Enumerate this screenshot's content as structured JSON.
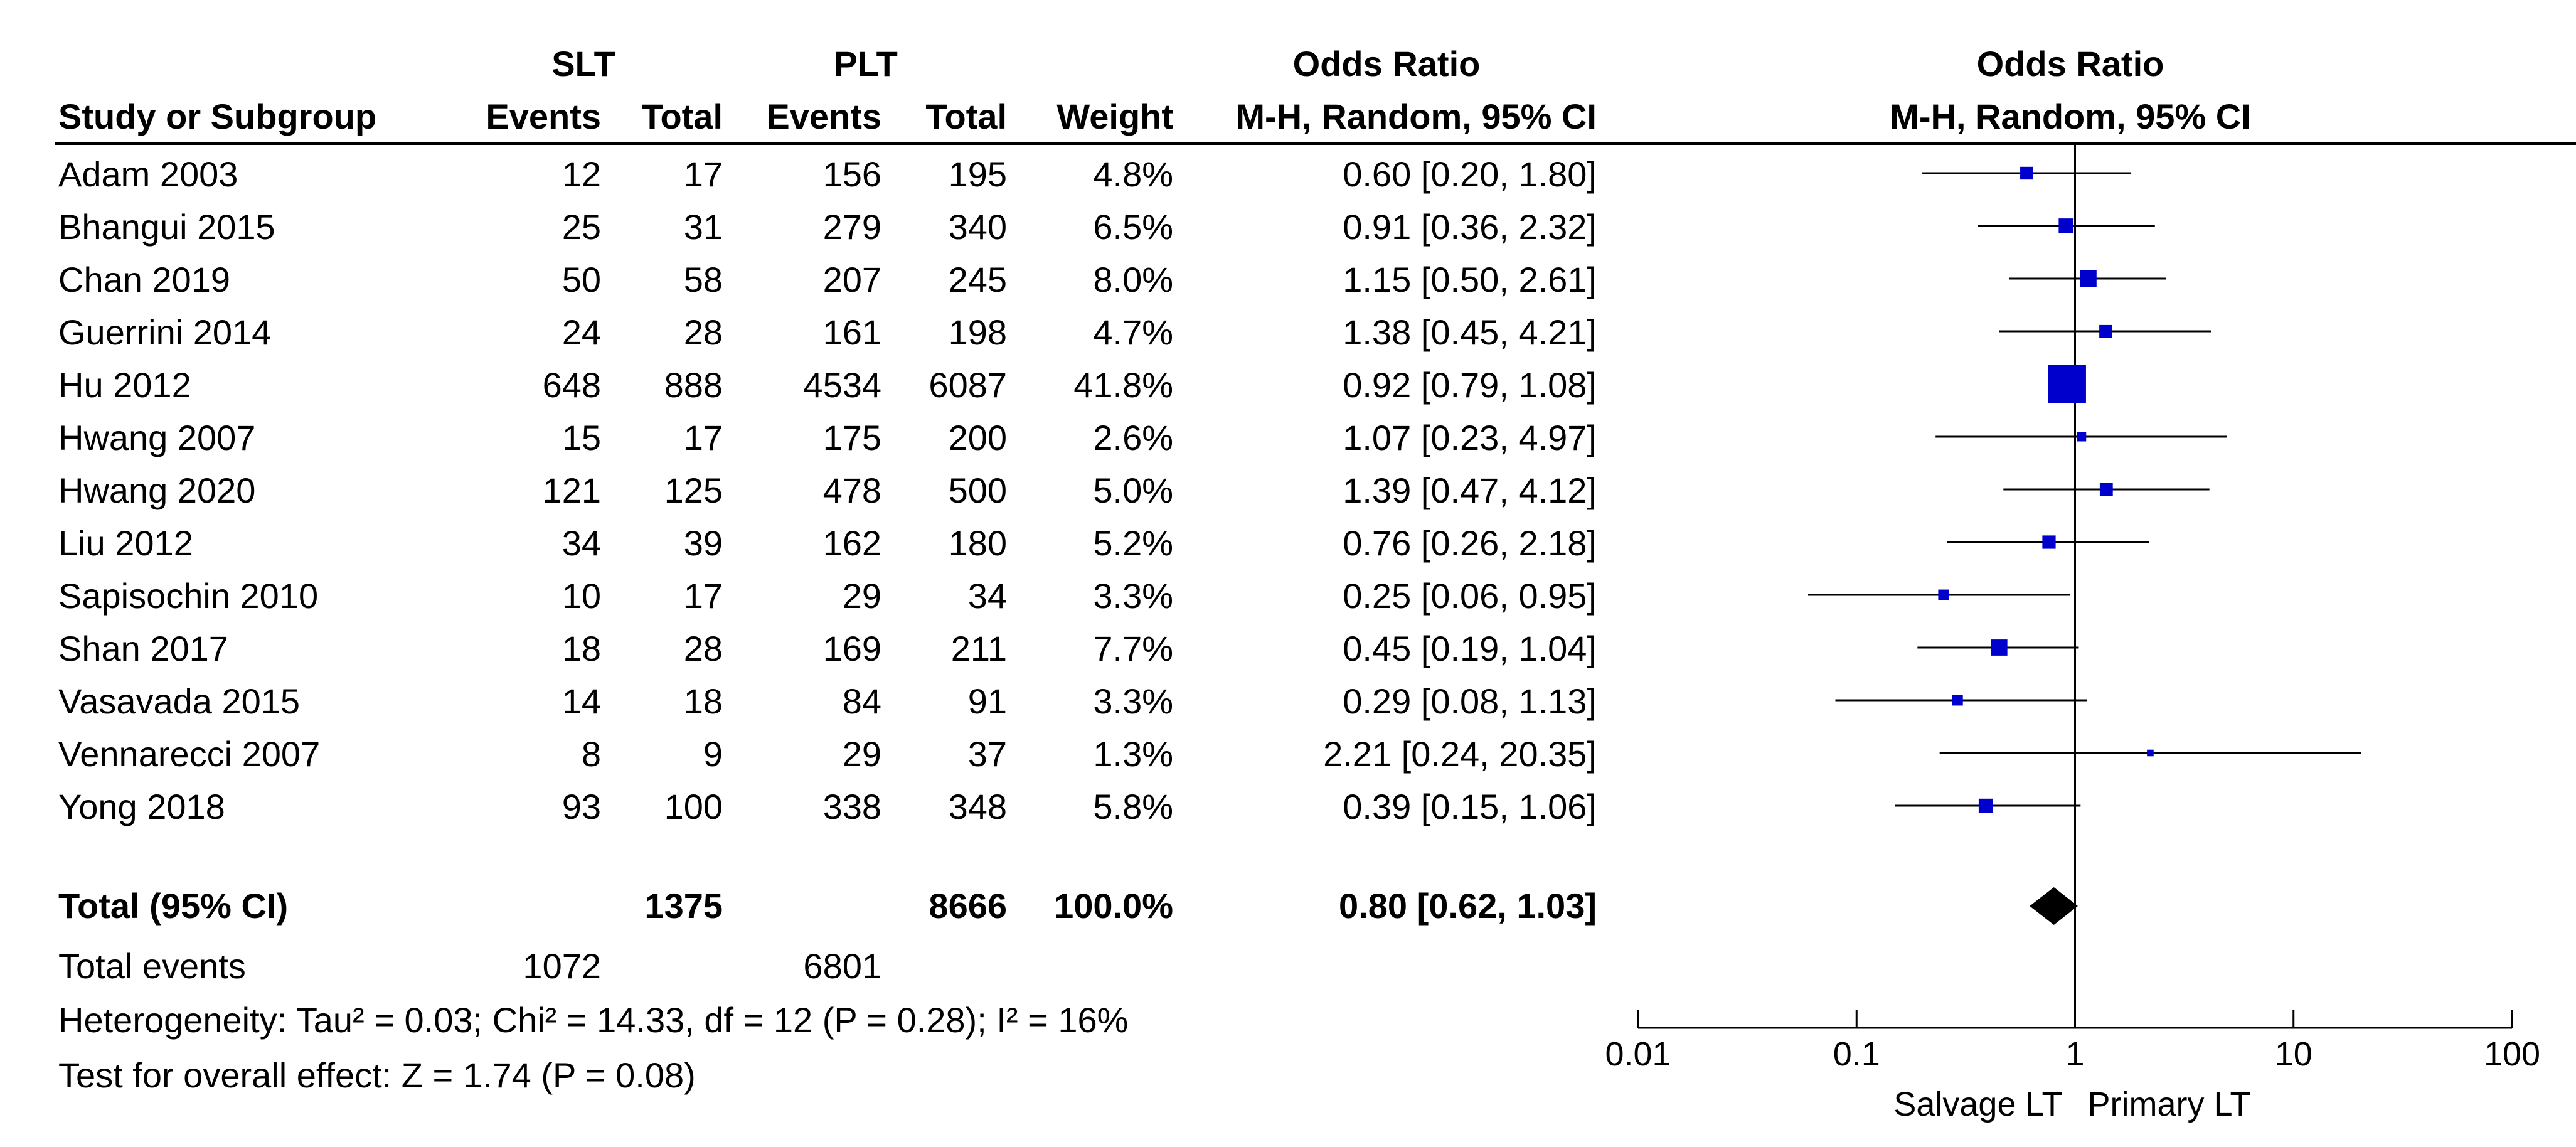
{
  "header": {
    "group1": "SLT",
    "group2": "PLT",
    "or_title": "Odds Ratio",
    "plot_title": "Odds Ratio",
    "col_study": "Study or Subgroup",
    "col_events1": "Events",
    "col_total1": "Total",
    "col_events2": "Events",
    "col_total2": "Total",
    "col_weight": "Weight",
    "col_method": "M-H, Random, 95% CI",
    "plot_method": "M-H, Random, 95% CI"
  },
  "total_row": {
    "label": "Total (95% CI)",
    "total1": "1375",
    "total2": "8666",
    "weight": "100.0%",
    "ci_text": "0.80 [0.62, 1.03]"
  },
  "footer": {
    "events_label": "Total events",
    "events1": "1072",
    "events2": "6801",
    "heterogeneity": "Heterogeneity: Tau² = 0.03; Chi² = 14.33, df = 12 (P = 0.28); I² = 16%",
    "overall": "Test for overall effect: Z = 1.74 (P = 0.08)"
  },
  "axis": {
    "left_label": "Salvage LT",
    "right_label": "Primary LT"
  },
  "colors": {
    "marker": "#0000cc",
    "line": "#000000",
    "diamond": "#000000"
  },
  "chart_data": {
    "type": "forest",
    "title": "Odds Ratio",
    "xscale": "log",
    "xlim": [
      0.01,
      100
    ],
    "ticks": [
      {
        "value": 0.01,
        "label": "0.01"
      },
      {
        "value": 0.1,
        "label": "0.1"
      },
      {
        "value": 1,
        "label": "1"
      },
      {
        "value": 10,
        "label": "10"
      },
      {
        "value": 100,
        "label": "100"
      }
    ],
    "studies": [
      {
        "name": "Adam 2003",
        "e1": "12",
        "n1": "17",
        "e2": "156",
        "n2": "195",
        "weight": "4.8%",
        "w": 4.8,
        "or": 0.6,
        "lo": 0.2,
        "hi": 1.8,
        "ci_text": "0.60 [0.20, 1.80]"
      },
      {
        "name": "Bhangui 2015",
        "e1": "25",
        "n1": "31",
        "e2": "279",
        "n2": "340",
        "weight": "6.5%",
        "w": 6.5,
        "or": 0.91,
        "lo": 0.36,
        "hi": 2.32,
        "ci_text": "0.91 [0.36, 2.32]"
      },
      {
        "name": "Chan 2019",
        "e1": "50",
        "n1": "58",
        "e2": "207",
        "n2": "245",
        "weight": "8.0%",
        "w": 8.0,
        "or": 1.15,
        "lo": 0.5,
        "hi": 2.61,
        "ci_text": "1.15 [0.50, 2.61]"
      },
      {
        "name": "Guerrini 2014",
        "e1": "24",
        "n1": "28",
        "e2": "161",
        "n2": "198",
        "weight": "4.7%",
        "w": 4.7,
        "or": 1.38,
        "lo": 0.45,
        "hi": 4.21,
        "ci_text": "1.38 [0.45, 4.21]"
      },
      {
        "name": "Hu 2012",
        "e1": "648",
        "n1": "888",
        "e2": "4534",
        "n2": "6087",
        "weight": "41.8%",
        "w": 41.8,
        "or": 0.92,
        "lo": 0.79,
        "hi": 1.08,
        "ci_text": "0.92 [0.79, 1.08]"
      },
      {
        "name": "Hwang 2007",
        "e1": "15",
        "n1": "17",
        "e2": "175",
        "n2": "200",
        "weight": "2.6%",
        "w": 2.6,
        "or": 1.07,
        "lo": 0.23,
        "hi": 4.97,
        "ci_text": "1.07 [0.23, 4.97]"
      },
      {
        "name": "Hwang 2020",
        "e1": "121",
        "n1": "125",
        "e2": "478",
        "n2": "500",
        "weight": "5.0%",
        "w": 5.0,
        "or": 1.39,
        "lo": 0.47,
        "hi": 4.12,
        "ci_text": "1.39 [0.47, 4.12]"
      },
      {
        "name": "Liu 2012",
        "e1": "34",
        "n1": "39",
        "e2": "162",
        "n2": "180",
        "weight": "5.2%",
        "w": 5.2,
        "or": 0.76,
        "lo": 0.26,
        "hi": 2.18,
        "ci_text": "0.76 [0.26, 2.18]"
      },
      {
        "name": "Sapisochin 2010",
        "e1": "10",
        "n1": "17",
        "e2": "29",
        "n2": "34",
        "weight": "3.3%",
        "w": 3.3,
        "or": 0.25,
        "lo": 0.06,
        "hi": 0.95,
        "ci_text": "0.25 [0.06, 0.95]"
      },
      {
        "name": "Shan 2017",
        "e1": "18",
        "n1": "28",
        "e2": "169",
        "n2": "211",
        "weight": "7.7%",
        "w": 7.7,
        "or": 0.45,
        "lo": 0.19,
        "hi": 1.04,
        "ci_text": "0.45 [0.19, 1.04]"
      },
      {
        "name": "Vasavada 2015",
        "e1": "14",
        "n1": "18",
        "e2": "84",
        "n2": "91",
        "weight": "3.3%",
        "w": 3.3,
        "or": 0.29,
        "lo": 0.08,
        "hi": 1.13,
        "ci_text": "0.29 [0.08, 1.13]"
      },
      {
        "name": "Vennarecci 2007",
        "e1": "8",
        "n1": "9",
        "e2": "29",
        "n2": "37",
        "weight": "1.3%",
        "w": 1.3,
        "or": 2.21,
        "lo": 0.24,
        "hi": 20.35,
        "ci_text": "2.21 [0.24, 20.35]"
      },
      {
        "name": "Yong 2018",
        "e1": "93",
        "n1": "100",
        "e2": "338",
        "n2": "348",
        "weight": "5.8%",
        "w": 5.8,
        "or": 0.39,
        "lo": 0.15,
        "hi": 1.06,
        "ci_text": "0.39 [0.15, 1.06]"
      }
    ],
    "pooled": {
      "or": 0.8,
      "lo": 0.62,
      "hi": 1.03
    }
  }
}
